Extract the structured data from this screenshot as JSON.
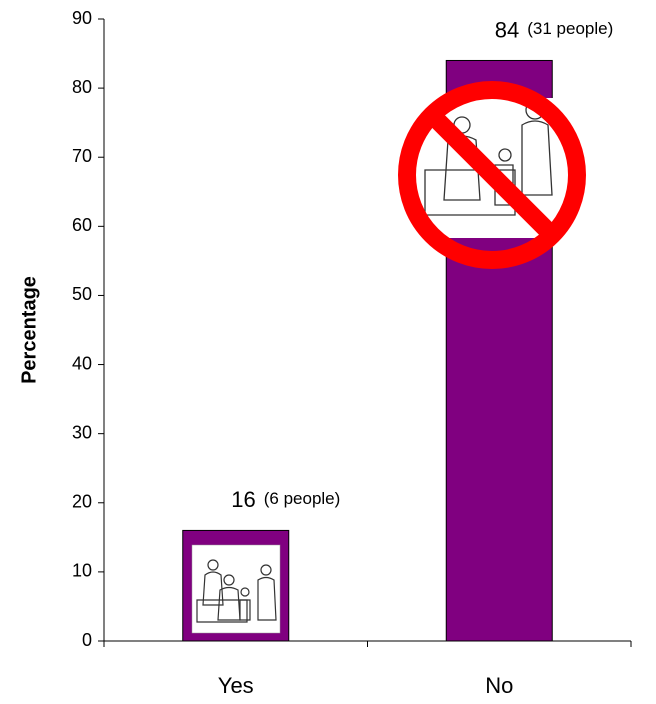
{
  "chart_data": {
    "type": "bar",
    "categories": [
      "Yes",
      "No"
    ],
    "values": [
      16,
      84
    ],
    "annotations": [
      "(6 people)",
      "(31 people)"
    ],
    "color": "#800080",
    "y_label": "Percentage",
    "ylim": [
      0,
      90
    ],
    "yticks": [
      0,
      10,
      20,
      30,
      40,
      50,
      60,
      70,
      80,
      90
    ]
  }
}
